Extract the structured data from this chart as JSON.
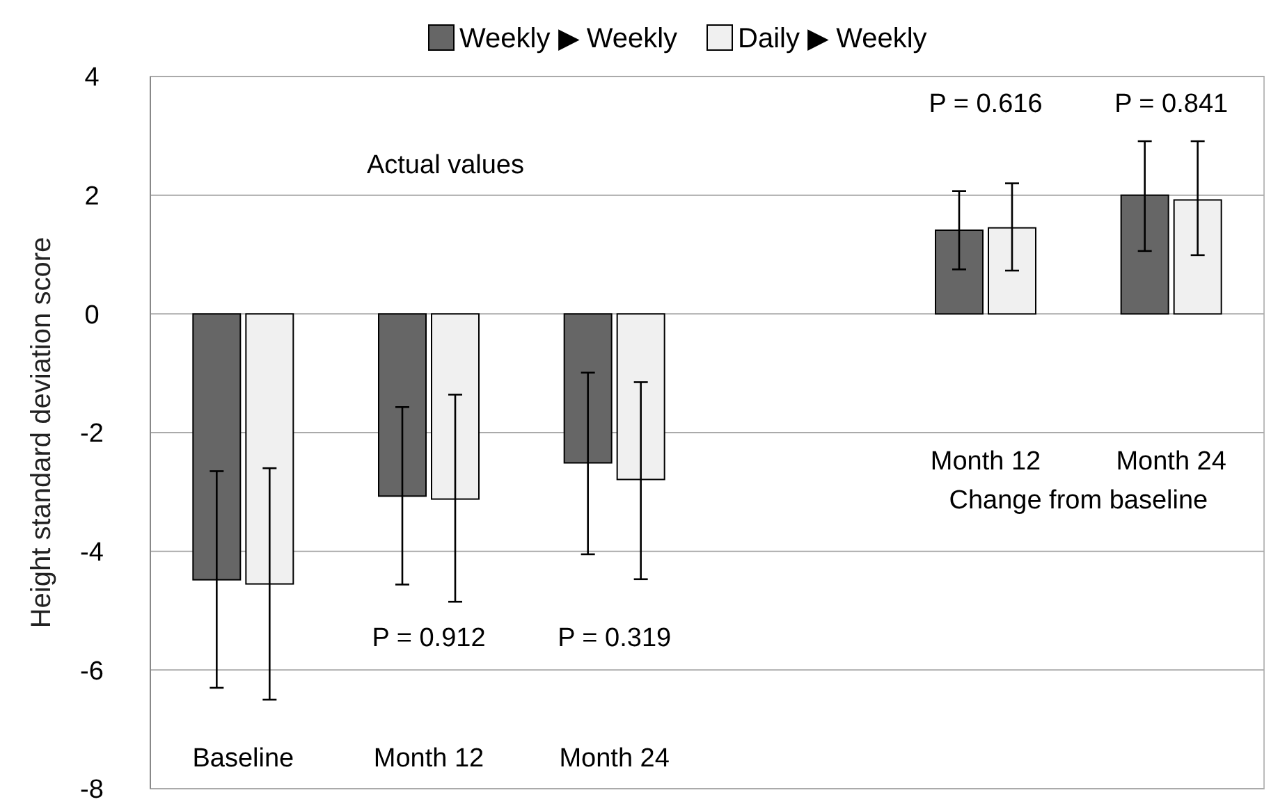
{
  "chart_data": {
    "type": "bar",
    "ylabel": "Height standard deviation score",
    "categories": [
      "Baseline",
      "Month 12",
      "Month 24",
      null,
      "Month 12",
      "Month 24"
    ],
    "series": [
      {
        "name": "Weekly ▶ Weekly",
        "color": "#666666",
        "values": [
          -4.48,
          -3.07,
          -2.51,
          null,
          1.41,
          2.0
        ],
        "errors": [
          [
            -6.3,
            -2.65
          ],
          [
            -4.56,
            -1.57
          ],
          [
            -4.05,
            -0.99
          ],
          null,
          [
            0.75,
            2.07
          ],
          [
            1.06,
            2.91
          ]
        ]
      },
      {
        "name": "Daily ▶ Weekly",
        "color": "#f0f0f0",
        "values": [
          -4.55,
          -3.12,
          -2.79,
          null,
          1.45,
          1.92
        ],
        "errors": [
          [
            -6.5,
            -2.6
          ],
          [
            -4.85,
            -1.36
          ],
          [
            -4.47,
            -1.15
          ],
          null,
          [
            0.73,
            2.2
          ],
          [
            0.99,
            2.91
          ]
        ]
      }
    ],
    "ylim": [
      -8,
      4
    ],
    "yticks": [
      4,
      2,
      0,
      -2,
      -4,
      -6,
      -8
    ],
    "grid": "y",
    "legend": "top",
    "annotations": [
      "Actual values",
      "P = 0.912",
      "P = 0.319",
      "P = 0.616",
      "P = 0.841",
      "Change from baseline"
    ]
  }
}
